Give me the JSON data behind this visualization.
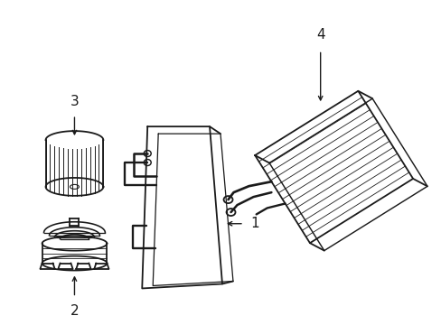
{
  "background_color": "#ffffff",
  "line_color": "#1a1a1a",
  "line_width": 1.3,
  "fig_w": 4.89,
  "fig_h": 3.6,
  "dpi": 100
}
